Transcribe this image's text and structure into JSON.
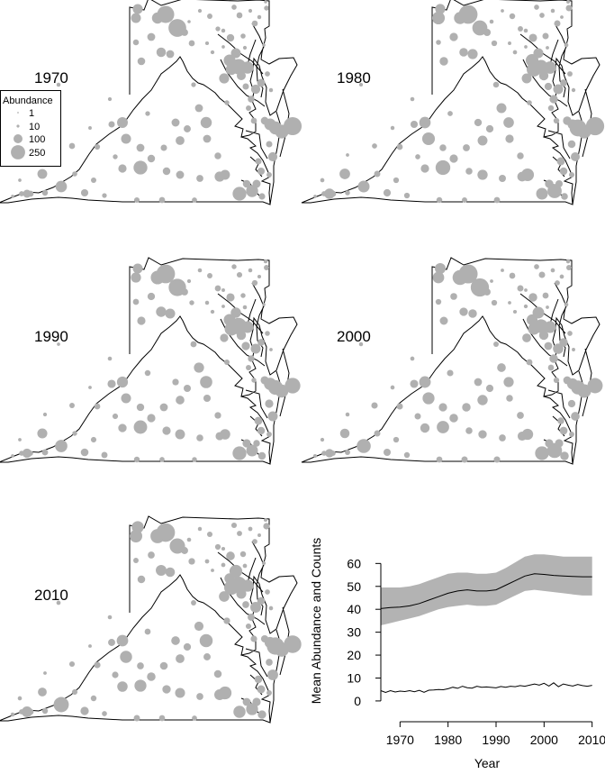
{
  "maps": [
    {
      "label": "1970",
      "scale": 1.0
    },
    {
      "label": "1980",
      "scale": 1.05
    },
    {
      "label": "1990",
      "scale": 1.03
    },
    {
      "label": "2000",
      "scale": 1.06
    },
    {
      "label": "2010",
      "scale": 1.08
    }
  ],
  "legend": {
    "title": "Abundance",
    "entries": [
      {
        "label": "1",
        "value": 1
      },
      {
        "label": "10",
        "value": 10
      },
      {
        "label": "100",
        "value": 100
      },
      {
        "label": "250",
        "value": 250
      }
    ]
  },
  "colors": {
    "points": "#b0b0b0",
    "band": "#b3b3b3",
    "line": "#000000",
    "outline": "#000000"
  },
  "chart_data": {
    "type": "line",
    "xlabel": "Year",
    "ylabel": "Mean Abundance and Counts",
    "xlim": [
      1966,
      2011
    ],
    "ylim": [
      -2,
      68
    ],
    "xticks": [
      1970,
      1980,
      1990,
      2000,
      2010
    ],
    "yticks": [
      0,
      10,
      20,
      30,
      40,
      50,
      60
    ],
    "grid": false,
    "series": [
      {
        "kind": "line-with-band",
        "x": [
          1966,
          1968,
          1970,
          1972,
          1974,
          1976,
          1978,
          1980,
          1982,
          1984,
          1986,
          1988,
          1990,
          1992,
          1994,
          1996,
          1998,
          2000,
          2002,
          2004,
          2006,
          2008,
          2010
        ],
        "values": [
          40.3,
          40.8,
          41.0,
          41.5,
          42.5,
          44.0,
          45.5,
          47.0,
          48.0,
          48.5,
          48.0,
          48.0,
          48.5,
          50.5,
          52.5,
          54.5,
          55.5,
          55.2,
          54.8,
          54.5,
          54.3,
          54.2,
          54.2
        ],
        "lower": [
          33,
          34,
          35,
          36,
          37,
          38.5,
          40,
          41,
          41.5,
          42,
          41.5,
          41.5,
          42,
          44,
          46,
          48,
          48.5,
          48,
          47.5,
          47,
          46.5,
          46,
          46
        ],
        "upper": [
          49.5,
          49.5,
          49.5,
          50,
          51,
          52.5,
          54,
          55.5,
          56,
          56,
          55.5,
          55.5,
          56,
          58,
          60.5,
          63,
          64,
          64,
          63.5,
          63,
          63,
          63,
          63
        ]
      },
      {
        "kind": "line",
        "x": [
          1966,
          1967,
          1968,
          1969,
          1970,
          1971,
          1972,
          1973,
          1974,
          1975,
          1976,
          1977,
          1978,
          1979,
          1980,
          1981,
          1982,
          1983,
          1984,
          1985,
          1986,
          1987,
          1988,
          1989,
          1990,
          1991,
          1992,
          1993,
          1994,
          1995,
          1996,
          1997,
          1998,
          1999,
          2000,
          2001,
          2002,
          2003,
          2004,
          2005,
          2006,
          2007,
          2008,
          2009,
          2010
        ],
        "values": [
          4.5,
          3.7,
          4.5,
          3.9,
          4.3,
          4.1,
          4.5,
          4.0,
          4.6,
          3.8,
          4.7,
          4.8,
          5.0,
          4.9,
          5.3,
          6.0,
          5.5,
          6.4,
          5.8,
          5.6,
          6.4,
          6.0,
          6.1,
          5.9,
          5.7,
          6.3,
          6.0,
          6.4,
          6.2,
          6.7,
          6.4,
          6.9,
          7.4,
          6.9,
          7.7,
          6.5,
          7.9,
          6.2,
          7.4,
          6.9,
          6.5,
          7.2,
          6.7,
          6.4,
          6.8
        ]
      }
    ]
  }
}
